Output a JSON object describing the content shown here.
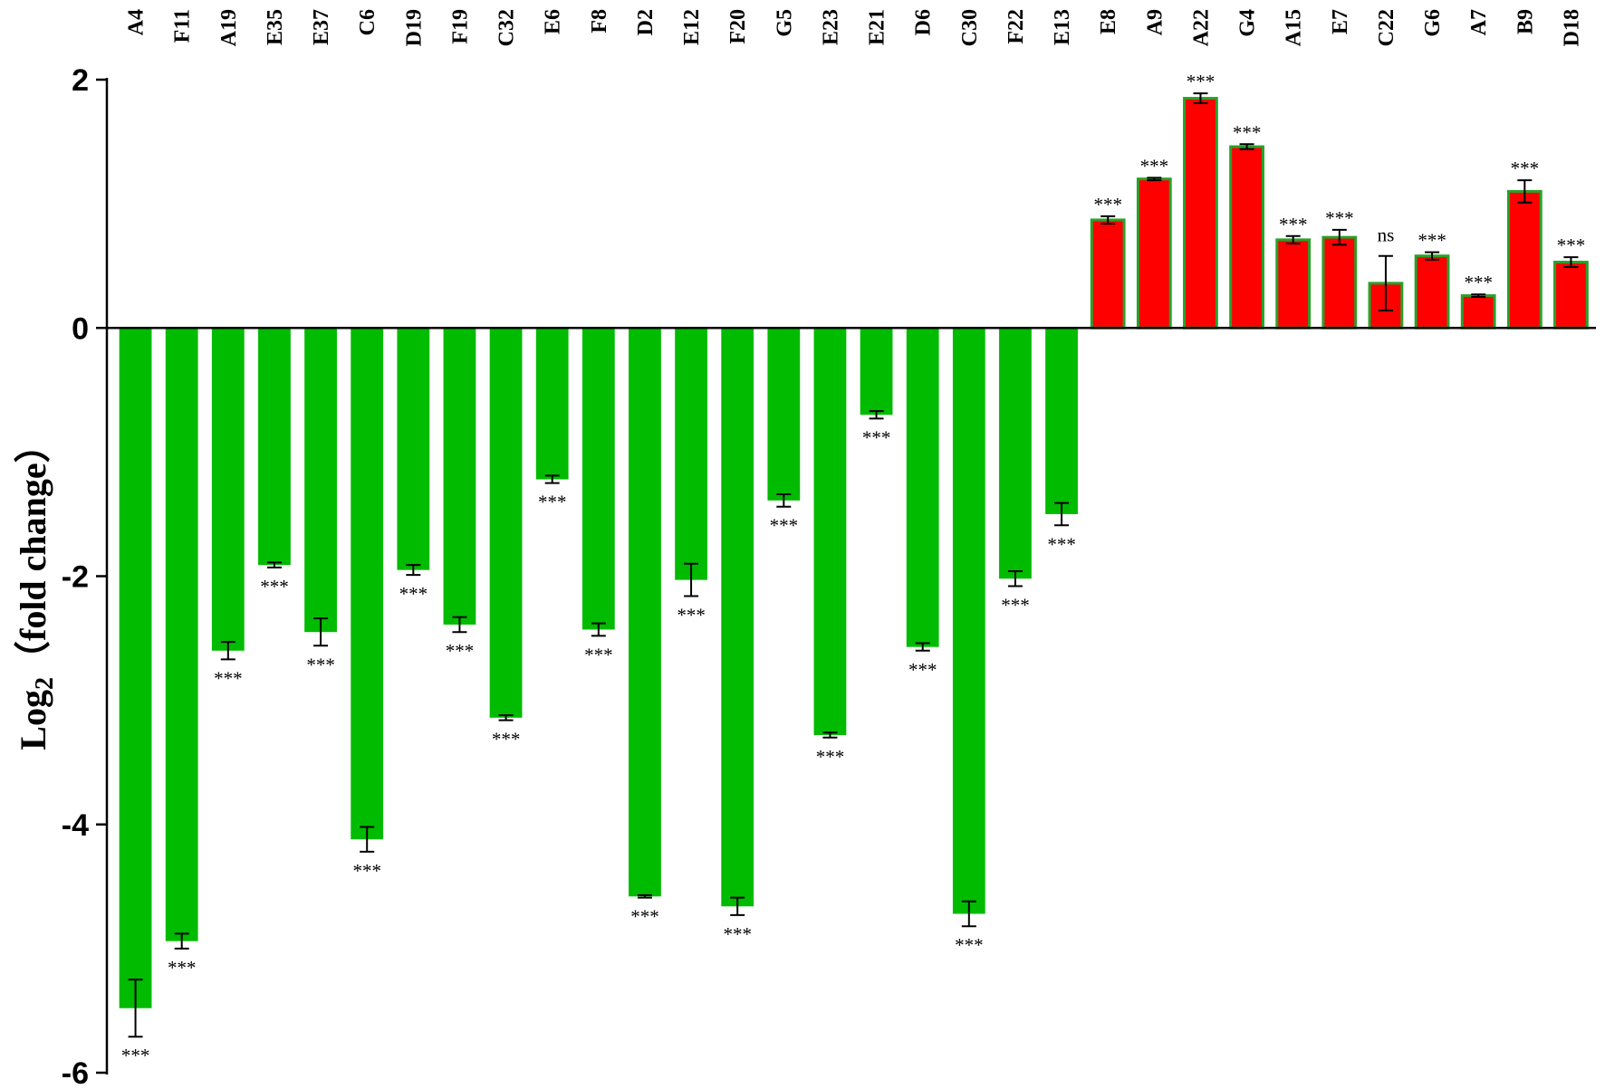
{
  "chart_data": {
    "type": "bar",
    "title": "",
    "xlabel": "",
    "ylabel": {
      "prefix": "Log",
      "subscript": "2",
      "suffix": "（fold change）"
    },
    "ylim": [
      -6,
      2
    ],
    "yticks": [
      "2",
      "0",
      "-2",
      "-4",
      "-6"
    ],
    "grid": false,
    "legend": "none",
    "colors": {
      "negative": "#00bb00",
      "positive": "#ff0000",
      "positive_edge": "#2aa02a",
      "error_bar": "#000000"
    },
    "categories": [
      "A4",
      "F11",
      "A19",
      "E35",
      "E37",
      "C6",
      "D19",
      "F19",
      "C32",
      "E6",
      "F8",
      "D2",
      "E12",
      "F20",
      "G5",
      "E23",
      "E21",
      "D6",
      "C30",
      "F22",
      "E13",
      "E8",
      "A9",
      "A22",
      "G4",
      "A15",
      "E7",
      "C22",
      "G6",
      "A7",
      "B9",
      "D18"
    ],
    "values": [
      -5.48,
      -4.94,
      -2.6,
      -1.91,
      -2.45,
      -4.12,
      -1.95,
      -2.39,
      -3.14,
      -1.22,
      -2.43,
      -4.58,
      -2.03,
      -4.66,
      -1.39,
      -3.28,
      -0.7,
      -2.57,
      -4.72,
      -2.02,
      -1.5,
      0.87,
      1.2,
      1.85,
      1.46,
      0.71,
      0.73,
      0.36,
      0.58,
      0.26,
      1.1,
      0.53
    ],
    "errors": [
      0.23,
      0.06,
      0.07,
      0.02,
      0.11,
      0.1,
      0.04,
      0.06,
      0.02,
      0.03,
      0.05,
      0.01,
      0.13,
      0.07,
      0.05,
      0.02,
      0.03,
      0.03,
      0.1,
      0.06,
      0.09,
      0.03,
      0.01,
      0.04,
      0.02,
      0.03,
      0.06,
      0.22,
      0.03,
      0.01,
      0.09,
      0.04
    ],
    "significance": [
      "***",
      "***",
      "***",
      "***",
      "***",
      "***",
      "***",
      "***",
      "***",
      "***",
      "***",
      "***",
      "***",
      "***",
      "***",
      "***",
      "***",
      "***",
      "***",
      "***",
      "***",
      "***",
      "***",
      "***",
      "***",
      "***",
      "***",
      "ns",
      "***",
      "***",
      "***",
      "***"
    ]
  }
}
